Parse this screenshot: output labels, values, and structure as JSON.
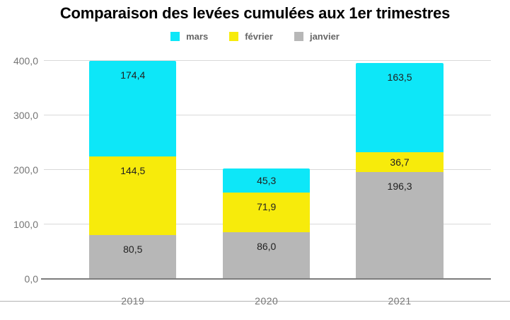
{
  "title": "Comparaison des levées cumulées aux 1er trimestres",
  "colors": {
    "background": "#ffffff",
    "title_text": "#000000",
    "legend_text": "#666666",
    "axis_text": "#757575",
    "value_label_text": "#212121",
    "grid_line": "#d9d9d9",
    "baseline": "#7d7d7d",
    "bottom_rule": "#b3b3b3"
  },
  "chart_data": {
    "type": "bar",
    "stacked": true,
    "title": "Comparaison des levées cumulées aux 1er trimestres",
    "categories": [
      "2019",
      "2020",
      "2021"
    ],
    "series": [
      {
        "name": "janvier",
        "color": "#b7b7b7",
        "values": [
          80.5,
          86.0,
          196.3
        ]
      },
      {
        "name": "février",
        "color": "#f7eb0b",
        "values": [
          144.5,
          71.9,
          36.7
        ]
      },
      {
        "name": "mars",
        "color": "#0de7f8",
        "values": [
          174.4,
          45.3,
          163.5
        ]
      }
    ],
    "legend_order": [
      "mars",
      "février",
      "janvier"
    ],
    "legend_position": "top",
    "y_ticks": [
      0,
      100,
      200,
      300,
      400
    ],
    "ylim": [
      0,
      400
    ],
    "grid": true,
    "value_label_decimals": 1,
    "decimal_separator": ",",
    "xlabel": "",
    "ylabel": ""
  }
}
